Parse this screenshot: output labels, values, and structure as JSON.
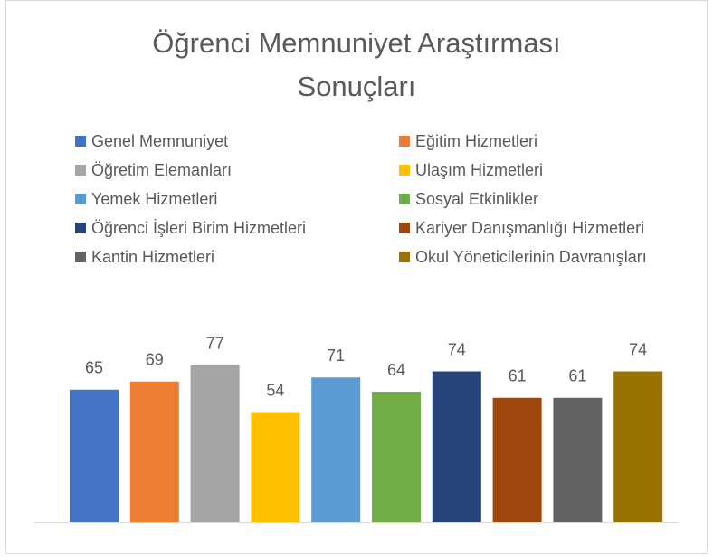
{
  "chart_data": {
    "type": "bar",
    "title": "Öğrenci Memnuniyet Araştırması Sonuçları",
    "series": [
      {
        "name": "Genel Memnuniyet",
        "color": "#4472c4",
        "values": [
          65
        ]
      },
      {
        "name": "Eğitim Hizmetleri",
        "color": "#ed7d31",
        "values": [
          69
        ]
      },
      {
        "name": "Öğretim Elemanları",
        "color": "#a5a5a5",
        "values": [
          77
        ]
      },
      {
        "name": "Ulaşım Hizmetleri",
        "color": "#ffc000",
        "values": [
          54
        ]
      },
      {
        "name": "Yemek Hizmetleri",
        "color": "#5b9bd5",
        "values": [
          71
        ]
      },
      {
        "name": "Sosyal Etkinlikler",
        "color": "#70ad47",
        "values": [
          64
        ]
      },
      {
        "name": "Öğrenci İşleri Birim Hizmetleri",
        "color": "#264478",
        "values": [
          74
        ]
      },
      {
        "name": "Kariyer Danışmanlığı Hizmetleri",
        "color": "#9e480e",
        "values": [
          61
        ]
      },
      {
        "name": "Kantin Hizmetleri",
        "color": "#636363",
        "values": [
          61
        ]
      },
      {
        "name": "Okul Yöneticilerinin Davranışları",
        "color": "#997300",
        "values": [
          74
        ]
      }
    ],
    "legend": "top"
  }
}
